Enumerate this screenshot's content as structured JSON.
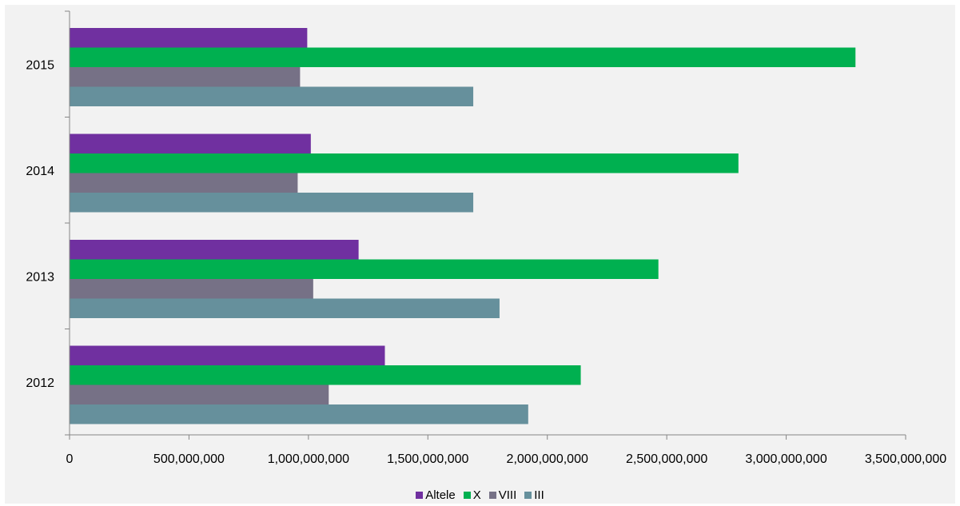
{
  "chart_data": {
    "type": "bar",
    "orientation": "horizontal",
    "categories": [
      "2012",
      "2013",
      "2014",
      "2015"
    ],
    "series": [
      {
        "name": "Altele",
        "color": "#7030a0",
        "values": [
          1320000000,
          1210000000,
          1010000000,
          995000000
        ]
      },
      {
        "name": "X",
        "color": "#00b050",
        "values": [
          2140000000,
          2465000000,
          2800000000,
          3290000000
        ]
      },
      {
        "name": "VIII",
        "color": "#767186",
        "values": [
          1085000000,
          1020000000,
          955000000,
          965000000
        ]
      },
      {
        "name": "III",
        "color": "#66909c",
        "values": [
          1920000000,
          1800000000,
          1690000000,
          1690000000
        ]
      }
    ],
    "xlim": [
      0,
      3500000000
    ],
    "xticks": [
      "0",
      "500,000,000",
      "1,000,000,000",
      "1,500,000,000",
      "2,000,000,000",
      "2,500,000,000",
      "3,000,000,000",
      "3,500,000,000"
    ],
    "grid": false,
    "legend_position": "bottom",
    "title": "",
    "xlabel": "",
    "ylabel": ""
  }
}
